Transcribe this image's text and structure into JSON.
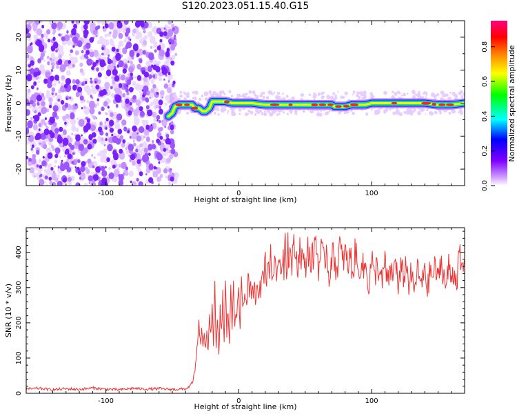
{
  "title": "S120.2023.051.15.40.G15",
  "chart_data": [
    {
      "type": "heatmap",
      "title": "S120.2023.051.15.40.G15",
      "xlabel": "Height of straight line (km)",
      "ylabel": "Frequency (Hz)",
      "xlim": [
        -160,
        170
      ],
      "ylim": [
        -25,
        25
      ],
      "xticks": [
        -100,
        0,
        100
      ],
      "xtick_labels": [
        "-100",
        "0",
        "100"
      ],
      "yticks": [
        -20,
        -10,
        0,
        10,
        20
      ],
      "ytick_labels": [
        "-20",
        "-10",
        "0",
        "10",
        "20"
      ],
      "grid": false,
      "noise_region_x": [
        -160,
        -50
      ],
      "ridge": {
        "x": [
          -53,
          -50,
          -48,
          -45,
          -40,
          -35,
          -33,
          -30,
          -27,
          -25,
          -22,
          -20,
          -18,
          -15,
          -10,
          -5,
          0,
          5,
          10,
          20,
          30,
          40,
          50,
          60,
          70,
          72,
          75,
          80,
          85,
          90,
          95,
          100,
          110,
          120,
          130,
          140,
          150,
          160,
          170
        ],
        "y": [
          -4,
          -3,
          -1,
          -0.5,
          -0.5,
          -0.5,
          -1.5,
          -1.5,
          -2.5,
          -2.5,
          -1.5,
          0.5,
          0.5,
          0.5,
          0.5,
          0,
          0,
          0,
          0,
          -0.5,
          -0.5,
          -0.5,
          -0.5,
          -0.5,
          -0.5,
          -1,
          -1,
          -1,
          -0.5,
          -0.5,
          -0.5,
          0,
          0,
          0,
          0,
          0,
          -0.5,
          -0.5,
          0
        ]
      },
      "colorbar": {
        "label": "Normalized spectral amplitude",
        "range": [
          0,
          0.95
        ],
        "ticks": [
          0.0,
          0.2,
          0.4,
          0.6,
          0.8
        ],
        "tick_labels": [
          "0.0",
          "0.2",
          "0.4",
          "0.6",
          "0.8"
        ],
        "colors": [
          "#ffffff",
          "#d0a0ff",
          "#8000ff",
          "#0000ff",
          "#00ffff",
          "#00ff00",
          "#ffff00",
          "#ff8000",
          "#ff0000",
          "#ff0080"
        ]
      }
    },
    {
      "type": "line",
      "xlabel": "Height of straight line (km)",
      "ylabel": "SNR (10 * v/v)",
      "xlim": [
        -160,
        170
      ],
      "ylim": [
        0,
        470
      ],
      "xticks": [
        -100,
        0,
        100
      ],
      "xtick_labels": [
        "-100",
        "0",
        "100"
      ],
      "yticks": [
        0,
        100,
        200,
        300,
        400
      ],
      "ytick_labels": [
        "0",
        "100",
        "200",
        "300",
        "400"
      ],
      "grid": false,
      "series": [
        {
          "color": "#ee3333",
          "x": [
            -160,
            -150,
            -140,
            -130,
            -120,
            -110,
            -100,
            -90,
            -80,
            -70,
            -60,
            -50,
            -40,
            -37,
            -35,
            -33,
            -32,
            -31,
            -30,
            -29,
            -28,
            -27,
            -26,
            -25,
            -24,
            -23,
            -22,
            -21,
            -20,
            -19,
            -18,
            -17,
            -16,
            -15,
            -14,
            -13,
            -12,
            -11,
            -10,
            -9,
            -8,
            -7,
            -6,
            -5,
            -4,
            -3,
            -2,
            -1,
            0,
            1,
            2,
            3,
            4,
            5,
            6,
            7,
            8,
            9,
            10,
            11,
            12,
            13,
            14,
            15,
            16,
            17,
            18,
            19,
            20,
            21,
            22,
            23,
            24,
            25,
            26,
            27,
            28,
            29,
            30,
            31,
            32,
            33,
            34,
            35,
            36,
            37,
            38,
            39,
            40,
            42,
            44,
            46,
            48,
            50,
            52,
            54,
            56,
            58,
            60,
            62,
            64,
            66,
            68,
            70,
            72,
            74,
            76,
            78,
            80,
            82,
            84,
            86,
            88,
            90,
            92,
            94,
            96,
            98,
            100,
            102,
            104,
            106,
            108,
            110,
            112,
            114,
            116,
            118,
            120,
            122,
            124,
            126,
            128,
            130,
            132,
            134,
            136,
            138,
            140,
            142,
            144,
            146,
            148,
            150,
            152,
            154,
            156,
            158,
            160,
            162,
            164,
            166,
            168,
            170
          ],
          "y": [
            12,
            14,
            10,
            13,
            11,
            15,
            12,
            10,
            14,
            12,
            13,
            11,
            12,
            20,
            30,
            60,
            100,
            150,
            190,
            140,
            170,
            130,
            180,
            120,
            160,
            110,
            230,
            180,
            250,
            150,
            290,
            120,
            210,
            100,
            230,
            180,
            280,
            140,
            300,
            170,
            240,
            150,
            280,
            190,
            320,
            210,
            250,
            230,
            280,
            190,
            320,
            250,
            270,
            300,
            230,
            340,
            260,
            290,
            310,
            250,
            300,
            270,
            330,
            300,
            320,
            290,
            340,
            350,
            380,
            320,
            400,
            350,
            380,
            330,
            360,
            350,
            400,
            320,
            370,
            390,
            340,
            410,
            360,
            470,
            350,
            430,
            380,
            400,
            370,
            420,
            360,
            410,
            380,
            350,
            420,
            370,
            390,
            440,
            360,
            400,
            370,
            410,
            330,
            390,
            380,
            350,
            420,
            370,
            400,
            360,
            390,
            340,
            410,
            330,
            380,
            350,
            360,
            300,
            390,
            320,
            370,
            340,
            310,
            380,
            300,
            360,
            320,
            400,
            290,
            350,
            330,
            370,
            310,
            340,
            280,
            350,
            330,
            300,
            370,
            290,
            350,
            330,
            360,
            310,
            380,
            340,
            300,
            360,
            330,
            350,
            320,
            390,
            340,
            380
          ]
        }
      ]
    }
  ]
}
